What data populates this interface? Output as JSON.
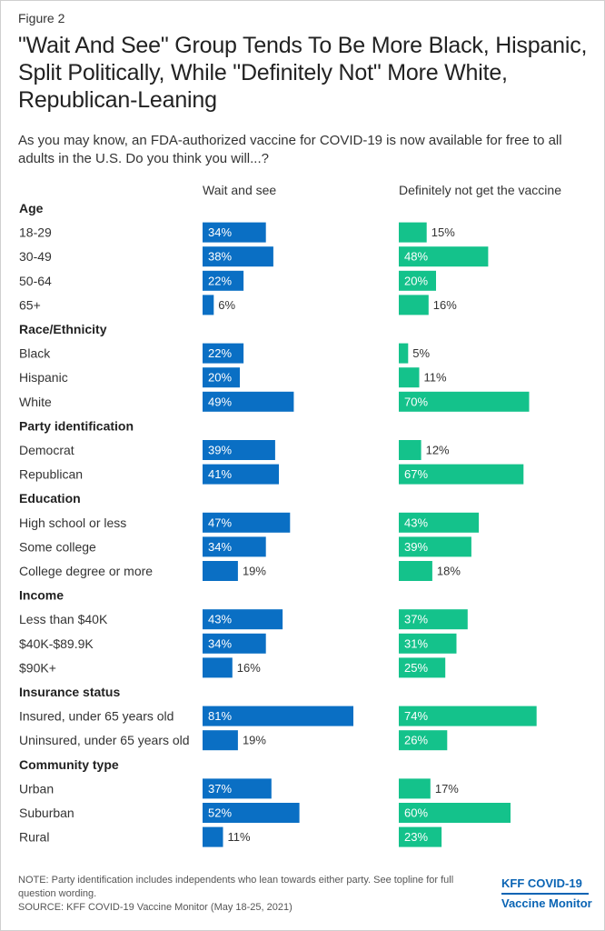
{
  "figure_label": "Figure 2",
  "title": "\"Wait And See\" Group Tends To Be More Black, Hispanic, Split Politically, While \"Definitely Not\" More White, Republican-Leaning",
  "subtitle": "As you may know, an FDA-authorized vaccine for COVID-19 is now available for free to all adults in the U.S. Do you think you will...?",
  "colors": {
    "wait": "#0a6fc4",
    "definitely_not": "#14c28b"
  },
  "chart_data": {
    "type": "bar",
    "title": "\"Wait And See\" Group Tends To Be More Black, Hispanic, Split Politically, While \"Definitely Not\" More White, Republican-Leaning",
    "series": [
      {
        "name": "Wait and see",
        "key": "wait"
      },
      {
        "name": "Definitely not get the vaccine",
        "key": "no"
      }
    ],
    "value_suffix": "%",
    "xlim": [
      0,
      100
    ],
    "grid": false,
    "legend": "top",
    "groups": [
      {
        "label": "Age",
        "rows": [
          {
            "label": "18-29",
            "wait": 34,
            "no": 15
          },
          {
            "label": "30-49",
            "wait": 38,
            "no": 48
          },
          {
            "label": "50-64",
            "wait": 22,
            "no": 20
          },
          {
            "label": "65+",
            "wait": 6,
            "no": 16
          }
        ]
      },
      {
        "label": "Race/Ethnicity",
        "rows": [
          {
            "label": "Black",
            "wait": 22,
            "no": 5
          },
          {
            "label": "Hispanic",
            "wait": 20,
            "no": 11
          },
          {
            "label": "White",
            "wait": 49,
            "no": 70
          }
        ]
      },
      {
        "label": "Party identification",
        "rows": [
          {
            "label": "Democrat",
            "wait": 39,
            "no": 12
          },
          {
            "label": "Republican",
            "wait": 41,
            "no": 67
          }
        ]
      },
      {
        "label": "Education",
        "rows": [
          {
            "label": "High school or less",
            "wait": 47,
            "no": 43
          },
          {
            "label": "Some college",
            "wait": 34,
            "no": 39
          },
          {
            "label": "College degree or more",
            "wait": 19,
            "no": 18
          }
        ]
      },
      {
        "label": "Income",
        "rows": [
          {
            "label": "Less than $40K",
            "wait": 43,
            "no": 37
          },
          {
            "label": "$40K-$89.9K",
            "wait": 34,
            "no": 31
          },
          {
            "label": "$90K+",
            "wait": 16,
            "no": 25
          }
        ]
      },
      {
        "label": "Insurance status",
        "rows": [
          {
            "label": "Insured, under 65 years old",
            "wait": 81,
            "no": 74
          },
          {
            "label": "Uninsured, under 65 years old",
            "wait": 19,
            "no": 26
          }
        ]
      },
      {
        "label": "Community type",
        "rows": [
          {
            "label": "Urban",
            "wait": 37,
            "no": 17
          },
          {
            "label": "Suburban",
            "wait": 52,
            "no": 60
          },
          {
            "label": "Rural",
            "wait": 11,
            "no": 23
          }
        ]
      }
    ]
  },
  "note": "NOTE: Party identification includes independents who lean towards either party. See topline for full question wording.",
  "source": "SOURCE: KFF COVID-19 Vaccine Monitor (May 18-25, 2021)",
  "logo": {
    "line1": "KFF COVID-19",
    "line2": "Vaccine Monitor"
  }
}
